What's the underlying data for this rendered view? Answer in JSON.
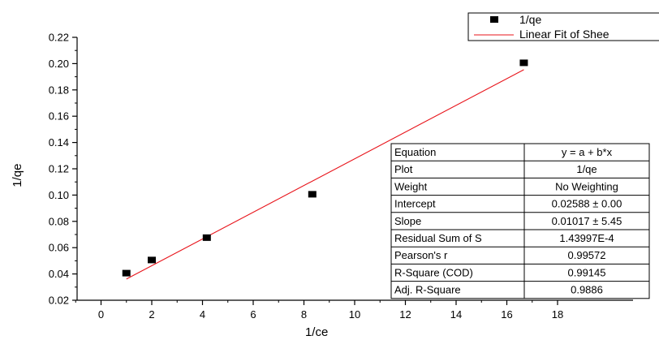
{
  "chart_data": {
    "type": "scatter",
    "xlabel": "1/ce",
    "ylabel": "1/qe",
    "xlim": [
      -1,
      18
    ],
    "ylim": [
      0.02,
      0.22
    ],
    "xticks": [
      0,
      2,
      4,
      6,
      8,
      10,
      12,
      14,
      16,
      18
    ],
    "yticks": [
      0.02,
      0.04,
      0.06,
      0.08,
      0.1,
      0.12,
      0.14,
      0.16,
      0.18,
      0.2,
      0.22
    ],
    "xtick_labels": [
      "0",
      "2",
      "4",
      "6",
      "8",
      "10",
      "12",
      "14",
      "16",
      "18"
    ],
    "ytick_labels": [
      "0.02",
      "0.04",
      "0.06",
      "0.08",
      "0.10",
      "0.12",
      "0.14",
      "0.16",
      "0.18",
      "0.20",
      "0.22"
    ],
    "grid": false,
    "legend_position": "top-right",
    "series": [
      {
        "name": "1/qe",
        "kind": "scatter",
        "marker": "square",
        "color": "#000000",
        "x": [
          1.0,
          2.0,
          4.17,
          8.33,
          16.67
        ],
        "y": [
          0.04,
          0.05,
          0.067,
          0.1,
          0.2
        ]
      },
      {
        "name": "Linear Fit of Shee",
        "kind": "line",
        "color": "#e8141b",
        "x": [
          1.0,
          16.67
        ],
        "y": [
          0.0361,
          0.1954
        ]
      }
    ],
    "fit_table": [
      [
        "Equation",
        "y = a + b*x"
      ],
      [
        "Plot",
        "1/qe"
      ],
      [
        "Weight",
        "No Weighting"
      ],
      [
        "Intercept",
        "0.02588 ± 0.00"
      ],
      [
        "Slope",
        "0.01017 ± 5.45"
      ],
      [
        "Residual Sum of S",
        "1.43997E-4"
      ],
      [
        "Pearson's r",
        "0.99572"
      ],
      [
        "R-Square (COD)",
        "0.99145"
      ],
      [
        "Adj. R-Square",
        "0.9886"
      ]
    ]
  }
}
